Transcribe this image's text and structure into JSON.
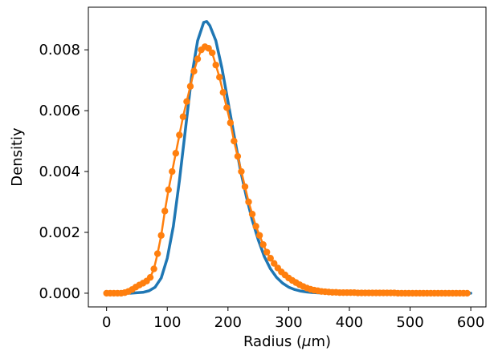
{
  "chart_data": {
    "type": "line",
    "xlabel": "Radius (μm)",
    "ylabel": "Densitiy",
    "xlim": [
      -30,
      625
    ],
    "ylim": [
      -0.00045,
      0.0094
    ],
    "x_ticks": [
      0,
      100,
      200,
      300,
      400,
      500,
      600
    ],
    "x_tick_labels": [
      "0",
      "100",
      "200",
      "300",
      "400",
      "500",
      "600"
    ],
    "y_ticks": [
      0.0,
      0.002,
      0.004,
      0.006,
      0.008
    ],
    "y_tick_labels": [
      "0.000",
      "0.002",
      "0.004",
      "0.006",
      "0.008"
    ],
    "grid": false,
    "series": [
      {
        "kind": "line",
        "color": "#1f77b4",
        "x": [
          0,
          40,
          60,
          70,
          80,
          90,
          100,
          110,
          120,
          130,
          140,
          150,
          160,
          165,
          170,
          180,
          190,
          200,
          210,
          220,
          230,
          240,
          250,
          260,
          270,
          280,
          290,
          300,
          310,
          320,
          330,
          340,
          350,
          360,
          370,
          380,
          400,
          450,
          500,
          550,
          600
        ],
        "values": [
          0,
          0,
          3e-05,
          8e-05,
          0.0002,
          0.0005,
          0.00115,
          0.0022,
          0.0037,
          0.0054,
          0.0071,
          0.0083,
          0.0089,
          0.00893,
          0.0088,
          0.0083,
          0.0074,
          0.0063,
          0.0052,
          0.0041,
          0.0032,
          0.0024,
          0.00175,
          0.0012,
          0.0008,
          0.00052,
          0.00033,
          0.0002,
          0.00012,
          7e-05,
          4e-05,
          2e-05,
          1e-05,
          5e-06,
          2e-06,
          1e-06,
          0,
          0,
          0,
          0,
          0
        ]
      },
      {
        "kind": "line-markers",
        "color": "#ff7f0e",
        "x": [
          0,
          6,
          12,
          18,
          24,
          30,
          36,
          42,
          48,
          54,
          60,
          66,
          72,
          78,
          84,
          90,
          96,
          102,
          108,
          114,
          120,
          126,
          132,
          138,
          144,
          150,
          156,
          162,
          168,
          174,
          180,
          186,
          192,
          198,
          204,
          210,
          216,
          222,
          228,
          234,
          240,
          246,
          252,
          258,
          264,
          270,
          276,
          282,
          288,
          294,
          300,
          306,
          312,
          318,
          324,
          330,
          336,
          342,
          348,
          354,
          360,
          366,
          372,
          378,
          384,
          390,
          396,
          402,
          408,
          414,
          420,
          426,
          432,
          438,
          444,
          450,
          456,
          462,
          468,
          474,
          480,
          486,
          492,
          498,
          504,
          510,
          516,
          522,
          528,
          534,
          540,
          546,
          552,
          558,
          564,
          570,
          576,
          582,
          588,
          594
        ],
        "values": [
          0,
          0,
          0,
          0,
          0,
          2e-05,
          6e-05,
          0.00012,
          0.0002,
          0.00027,
          0.00033,
          0.0004,
          0.00052,
          0.0008,
          0.0013,
          0.0019,
          0.0027,
          0.0034,
          0.004,
          0.0046,
          0.0052,
          0.0058,
          0.0063,
          0.0068,
          0.0073,
          0.0077,
          0.008,
          0.0081,
          0.00805,
          0.0079,
          0.0075,
          0.0071,
          0.0066,
          0.0061,
          0.0056,
          0.005,
          0.0045,
          0.004,
          0.0035,
          0.003,
          0.0026,
          0.0022,
          0.0019,
          0.0016,
          0.00135,
          0.00115,
          0.00098,
          0.00083,
          0.0007,
          0.0006,
          0.0005,
          0.00042,
          0.00035,
          0.00028,
          0.00022,
          0.00017,
          0.00013,
          0.0001,
          8e-05,
          6e-05,
          5e-05,
          4e-05,
          3e-05,
          3e-05,
          2e-05,
          2e-05,
          2e-05,
          2e-05,
          2e-05,
          1e-05,
          1e-05,
          1e-05,
          1e-05,
          1e-05,
          1e-05,
          1e-05,
          1e-05,
          1e-05,
          1e-05,
          1e-05,
          0,
          0,
          0,
          0,
          0,
          0,
          0,
          0,
          0,
          0,
          0,
          0,
          0,
          0,
          0,
          0,
          0,
          0,
          0,
          0
        ]
      }
    ]
  }
}
